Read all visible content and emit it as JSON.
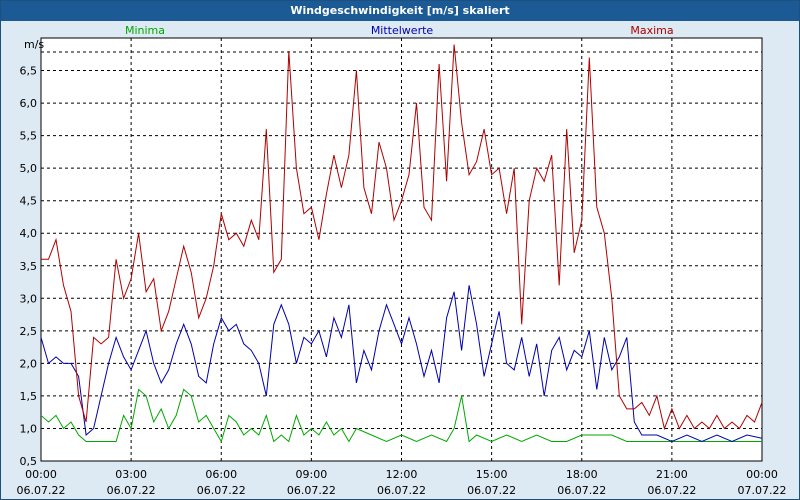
{
  "chart_data": {
    "type": "line",
    "title": "Windgeschwindigkeit [m/s] skaliert",
    "ylabel": "m/s",
    "ylim": [
      0.5,
      7.0
    ],
    "y_ticks": [
      "0,5",
      "1,0",
      "1,5",
      "2,0",
      "2,5",
      "3,0",
      "3,5",
      "4,0",
      "4,5",
      "5,0",
      "5,5",
      "6,0",
      "6,5"
    ],
    "x_range_hours": [
      0,
      24
    ],
    "x_ticks": [
      {
        "h": 0,
        "time": "00:00",
        "date": "06.07.22"
      },
      {
        "h": 3,
        "time": "03:00",
        "date": "06.07.22"
      },
      {
        "h": 6,
        "time": "06:00",
        "date": "06.07.22"
      },
      {
        "h": 9,
        "time": "09:00",
        "date": "06.07.22"
      },
      {
        "h": 12,
        "time": "12:00",
        "date": "06.07.22"
      },
      {
        "h": 15,
        "time": "15:00",
        "date": "06.07.22"
      },
      {
        "h": 18,
        "time": "18:00",
        "date": "06.07.22"
      },
      {
        "h": 21,
        "time": "21:00",
        "date": "06.07.22"
      },
      {
        "h": 24,
        "time": "00:00",
        "date": "07.07.22"
      }
    ],
    "grid": true,
    "legend_position": "top",
    "series": [
      {
        "name": "Minima",
        "color": "#00a800",
        "x": [
          0,
          0.25,
          0.5,
          0.75,
          1,
          1.25,
          1.5,
          2,
          2.5,
          2.75,
          3,
          3.25,
          3.5,
          3.75,
          4,
          4.25,
          4.5,
          4.75,
          5,
          5.25,
          5.5,
          5.75,
          6,
          6.25,
          6.5,
          6.75,
          7,
          7.25,
          7.5,
          7.75,
          8,
          8.25,
          8.5,
          8.75,
          9,
          9.25,
          9.5,
          9.75,
          10,
          10.25,
          10.5,
          11,
          11.5,
          12,
          12.5,
          13,
          13.5,
          13.75,
          14,
          14.25,
          14.5,
          15,
          15.5,
          16,
          16.5,
          17,
          17.5,
          18,
          18.5,
          19,
          19.5,
          20,
          20.5,
          21,
          21.5,
          22,
          22.5,
          23,
          23.5,
          24
        ],
        "y": [
          1.2,
          1.1,
          1.2,
          1.0,
          1.1,
          0.9,
          0.8,
          0.8,
          0.8,
          1.2,
          1.0,
          1.6,
          1.5,
          1.1,
          1.3,
          1.0,
          1.2,
          1.6,
          1.5,
          1.1,
          1.2,
          1.0,
          0.8,
          1.2,
          1.1,
          0.9,
          1.0,
          0.9,
          1.2,
          0.8,
          0.9,
          0.8,
          1.2,
          0.9,
          1.0,
          0.9,
          1.1,
          0.9,
          1.0,
          0.8,
          1.0,
          0.9,
          0.8,
          0.9,
          0.8,
          0.9,
          0.8,
          1.0,
          1.5,
          0.8,
          0.9,
          0.8,
          0.9,
          0.8,
          0.9,
          0.8,
          0.8,
          0.9,
          0.9,
          0.9,
          0.8,
          0.8,
          0.8,
          0.8,
          0.8,
          0.8,
          0.8,
          0.8,
          0.8,
          0.8
        ]
      },
      {
        "name": "Mittelwerte",
        "color": "#0000b0",
        "x": [
          0,
          0.25,
          0.5,
          0.75,
          1,
          1.25,
          1.5,
          1.75,
          2,
          2.25,
          2.5,
          2.75,
          3,
          3.25,
          3.5,
          3.75,
          4,
          4.25,
          4.5,
          4.75,
          5,
          5.25,
          5.5,
          5.75,
          6,
          6.25,
          6.5,
          6.75,
          7,
          7.25,
          7.5,
          7.75,
          8,
          8.25,
          8.5,
          8.75,
          9,
          9.25,
          9.5,
          9.75,
          10,
          10.25,
          10.5,
          10.75,
          11,
          11.25,
          11.5,
          11.75,
          12,
          12.25,
          12.5,
          12.75,
          13,
          13.25,
          13.5,
          13.75,
          14,
          14.25,
          14.5,
          14.75,
          15,
          15.25,
          15.5,
          15.75,
          16,
          16.25,
          16.5,
          16.75,
          17,
          17.25,
          17.5,
          17.75,
          18,
          18.25,
          18.5,
          18.75,
          19,
          19.25,
          19.5,
          19.75,
          20,
          20.5,
          21,
          21.5,
          22,
          22.5,
          23,
          23.5,
          24
        ],
        "y": [
          2.4,
          2.0,
          2.1,
          2.0,
          2.0,
          1.8,
          0.9,
          1.0,
          1.5,
          2.0,
          2.4,
          2.1,
          1.9,
          2.2,
          2.5,
          2.0,
          1.7,
          1.9,
          2.3,
          2.6,
          2.3,
          1.8,
          1.7,
          2.3,
          2.7,
          2.5,
          2.6,
          2.3,
          2.2,
          2.0,
          1.5,
          2.6,
          2.9,
          2.6,
          2.0,
          2.4,
          2.3,
          2.5,
          2.1,
          2.7,
          2.4,
          2.9,
          1.7,
          2.2,
          1.9,
          2.5,
          2.9,
          2.6,
          2.3,
          2.7,
          2.3,
          1.8,
          2.2,
          1.7,
          2.7,
          3.1,
          2.2,
          3.2,
          2.6,
          1.8,
          2.3,
          2.8,
          2.0,
          1.9,
          2.4,
          1.8,
          2.3,
          1.5,
          2.2,
          2.4,
          1.9,
          2.2,
          2.1,
          2.5,
          1.6,
          2.4,
          1.9,
          2.1,
          2.4,
          1.1,
          0.9,
          0.9,
          0.8,
          0.9,
          0.8,
          0.9,
          0.8,
          0.9,
          0.85
        ]
      },
      {
        "name": "Maxima",
        "color": "#b00000",
        "x": [
          0,
          0.25,
          0.5,
          0.75,
          1,
          1.25,
          1.5,
          1.75,
          2,
          2.25,
          2.5,
          2.75,
          3,
          3.25,
          3.5,
          3.75,
          4,
          4.25,
          4.5,
          4.75,
          5,
          5.25,
          5.5,
          5.75,
          6,
          6.25,
          6.5,
          6.75,
          7,
          7.25,
          7.5,
          7.75,
          8,
          8.25,
          8.5,
          8.75,
          9,
          9.25,
          9.5,
          9.75,
          10,
          10.25,
          10.5,
          10.75,
          11,
          11.25,
          11.5,
          11.75,
          12,
          12.25,
          12.5,
          12.75,
          13,
          13.25,
          13.5,
          13.75,
          14,
          14.25,
          14.5,
          14.75,
          15,
          15.25,
          15.5,
          15.75,
          16,
          16.25,
          16.5,
          16.75,
          17,
          17.25,
          17.5,
          17.75,
          18,
          18.25,
          18.5,
          18.75,
          19,
          19.25,
          19.5,
          19.75,
          20,
          20.25,
          20.5,
          20.75,
          21,
          21.25,
          21.5,
          21.75,
          22,
          22.25,
          22.5,
          22.75,
          23,
          23.25,
          23.5,
          23.75,
          24
        ],
        "y": [
          3.6,
          3.6,
          3.9,
          3.2,
          2.8,
          1.5,
          1.1,
          2.4,
          2.3,
          2.4,
          3.6,
          3.0,
          3.3,
          4.0,
          3.1,
          3.3,
          2.5,
          2.8,
          3.3,
          3.8,
          3.4,
          2.7,
          3.0,
          3.5,
          4.3,
          3.9,
          4.0,
          3.8,
          4.2,
          3.9,
          5.6,
          3.4,
          3.6,
          6.8,
          5.0,
          4.3,
          4.4,
          3.9,
          4.6,
          5.2,
          4.7,
          5.2,
          6.5,
          4.7,
          4.3,
          5.4,
          5.0,
          4.2,
          4.5,
          4.9,
          6.0,
          4.4,
          4.2,
          6.6,
          4.8,
          6.9,
          5.7,
          4.9,
          5.1,
          5.6,
          4.9,
          5.0,
          4.3,
          5.0,
          2.6,
          4.5,
          5.0,
          4.8,
          5.2,
          3.2,
          5.6,
          3.7,
          4.2,
          6.7,
          4.4,
          4.0,
          3.0,
          1.5,
          1.3,
          1.3,
          1.4,
          1.2,
          1.5,
          1.0,
          1.3,
          1.0,
          1.2,
          1.0,
          1.1,
          1.0,
          1.2,
          1.0,
          1.1,
          1.0,
          1.2,
          1.1,
          1.4
        ]
      }
    ]
  }
}
